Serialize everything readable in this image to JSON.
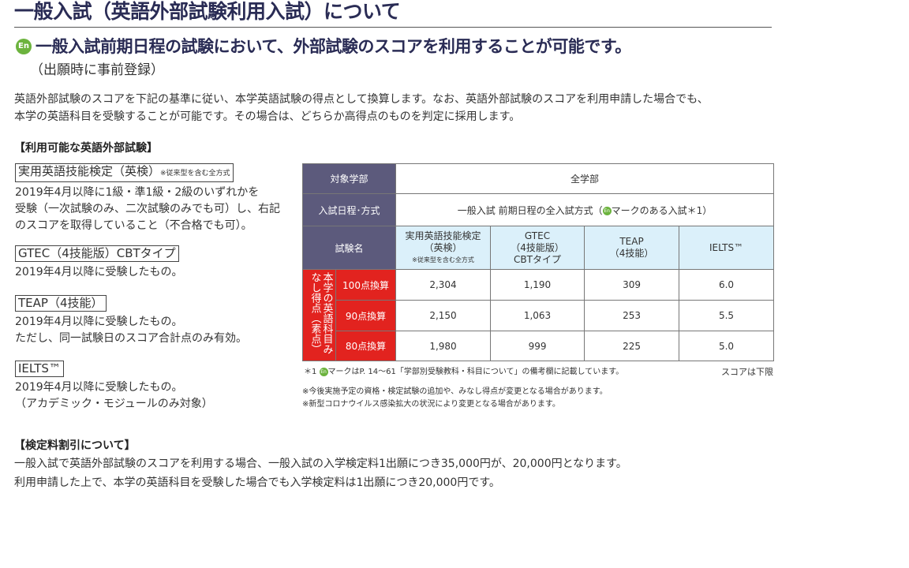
{
  "title": "一般入試（英語外部試験利用入試）について",
  "en_mark": "En",
  "subtitle": "一般入試前期日程の試験において、外部試験のスコアを利用することが可能です。",
  "subtitle_note": "（出願時に事前登録）",
  "intro": [
    "英語外部試験のスコアを下記の基準に従い、本学英語試験の得点として換算します。なお、英語外部試験のスコアを利用申請した場合でも、",
    "本学の英語科目を受験することが可能です。その場合は、どちらか高得点のものを判定に採用します。"
  ],
  "available_heading": "【利用可能な英語外部試験】",
  "exams": [
    {
      "name": "実用英語技能検定（英検）",
      "note": "※従来型を含む全方式",
      "desc": [
        "2019年4月以降に1級・準1級・2級のいずれかを",
        "受験（一次試験のみ、二次試験のみでも可）し、右記",
        "のスコアを取得していること（不合格でも可）。"
      ]
    },
    {
      "name": "GTEC（4技能版）CBTタイプ",
      "desc": [
        "2019年4月以降に受験したもの。"
      ]
    },
    {
      "name": "TEAP（4技能）",
      "desc": [
        "2019年4月以降に受験したもの。",
        "ただし、同一試験日のスコア合計点のみ有効。"
      ]
    },
    {
      "name": "IELTS™",
      "desc": [
        "2019年4月以降に受験したもの。",
        "（アカデミック・モジュールのみ対象）"
      ]
    }
  ],
  "table": {
    "faculty_label": "対象学部",
    "faculty_value": "全学部",
    "schedule_label": "入試日程･方式",
    "schedule_value_pre": "一般入試 前期日程の全入試方式（",
    "schedule_value_post": "マークのある入試＊1）",
    "exam_label": "試験名",
    "columns": [
      {
        "l1": "実用英語技能検定",
        "l2": "（英検）",
        "l3": "※従来型を含む全方式"
      },
      {
        "l1": "GTEC",
        "l2": "（4技能版）",
        "l3": "CBTタイプ"
      },
      {
        "l1": "TEAP",
        "l2": "（4技能）"
      },
      {
        "l1": "IELTS™"
      }
    ],
    "row_group_label": "本学の英語科目みなし得点（素点）",
    "rows": [
      {
        "label": "100点換算",
        "values": [
          "2,304",
          "1,190",
          "309",
          "6.0"
        ]
      },
      {
        "label": "90点換算",
        "values": [
          "2,150",
          "1,063",
          "253",
          "5.5"
        ]
      },
      {
        "label": "80点換算",
        "values": [
          "1,980",
          "999",
          "225",
          "5.0"
        ]
      }
    ]
  },
  "footnote1_pre": "＊1 ",
  "footnote1_post": "マークはP. 14～61「学部別受験教科・科目について」の備考欄に記載しています。",
  "score_note": "スコアは下限",
  "notes": [
    "※今後実施予定の資格・検定試験の追加や、みなし得点が変更となる場合があります。",
    "※新型コロナウイルス感染拡大の状況により変更となる場合があります。"
  ],
  "fee_heading": "【検定料割引について】",
  "fee_text": [
    "一般入試で英語外部試験のスコアを利用する場合、一般入試の入学検定料1出願につき35,000円が、20,000円となります。",
    "利用申請した上で、本学の英語科目を受験した場合でも入学検定料は1出願につき20,000円です。"
  ],
  "colors": {
    "title": "#2a2c55",
    "header_cell": "#5c5a7c",
    "exam_header": "#dbf0fa",
    "score_label": "#e2231f",
    "en_mark": "#6cb33e"
  }
}
